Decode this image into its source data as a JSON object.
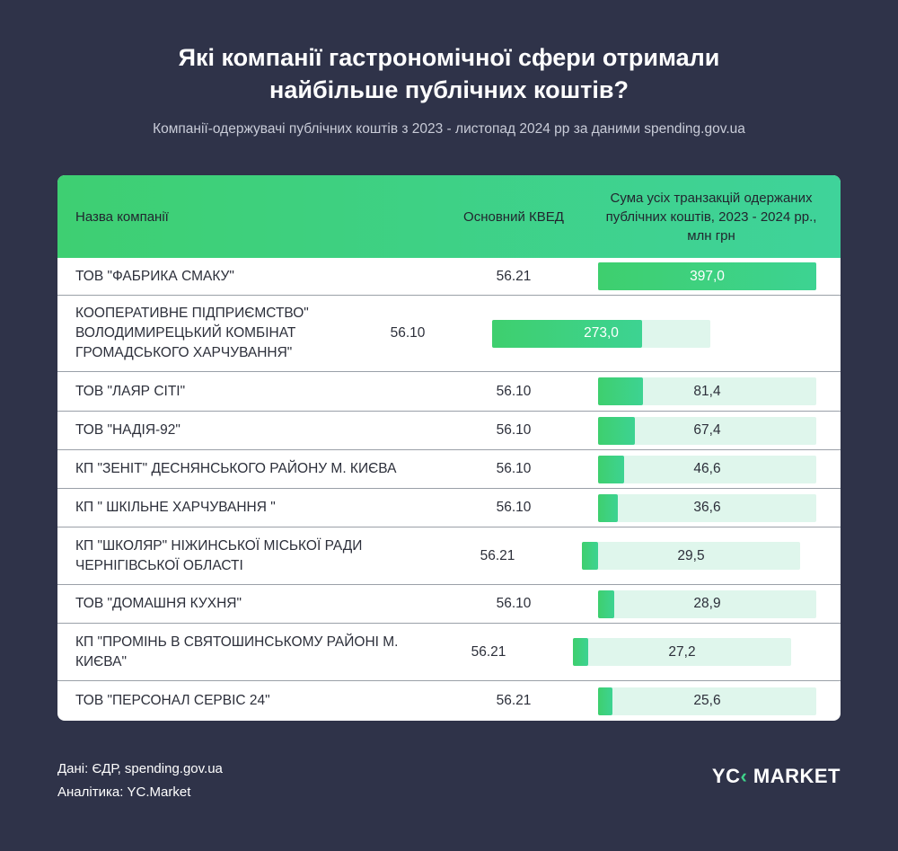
{
  "title_line1": "Які компанії гастрономічної сфери отримали",
  "title_line2": "найбільше публічних коштів?",
  "subtitle": "Компанії-одержувачі публічних коштів з 2023 - листопад 2024 рр за даними spending.gov.ua",
  "chart_data": {
    "type": "table",
    "columns": [
      "Назва компанії",
      "Основний КВЕД",
      "Сума усіх транзакцій одержаних публічних коштів, 2023 - 2024 рр., млн грн"
    ],
    "max": 397.0,
    "rows": [
      {
        "name": "ТОВ \"ФАБРИКА СМАКУ\"",
        "kved": "56.21",
        "value": 397.0,
        "label": "397,0"
      },
      {
        "name": "КООПЕРАТИВНЕ ПІДПРИЄМСТВО\" ВОЛОДИМИРЕЦЬКИЙ КОМБІНАТ ГРОМАДСЬКОГО ХАРЧУВАННЯ\"",
        "kved": "56.10",
        "value": 273.0,
        "label": "273,0"
      },
      {
        "name": "ТОВ \"ЛАЯР СІТІ\"",
        "kved": "56.10",
        "value": 81.4,
        "label": "81,4"
      },
      {
        "name": "ТОВ \"НАДІЯ-92\"",
        "kved": "56.10",
        "value": 67.4,
        "label": "67,4"
      },
      {
        "name": "КП \"ЗЕНІТ\" ДЕСНЯНСЬКОГО РАЙОНУ М. КИЄВА",
        "kved": "56.10",
        "value": 46.6,
        "label": "46,6"
      },
      {
        "name": "КП \" ШКІЛЬНЕ ХАРЧУВАННЯ \"",
        "kved": "56.10",
        "value": 36.6,
        "label": "36,6"
      },
      {
        "name": "КП \"ШКОЛЯР\" НІЖИНСЬКОЇ МІСЬКОЇ РАДИ ЧЕРНІГІВСЬКОЇ ОБЛАСТІ",
        "kved": "56.21",
        "value": 29.5,
        "label": "29,5"
      },
      {
        "name": "ТОВ \"ДОМАШНЯ КУХНЯ\"",
        "kved": "56.10",
        "value": 28.9,
        "label": "28,9"
      },
      {
        "name": "КП \"ПРОМІНЬ В СВЯТОШИНСЬКОМУ РАЙОНІ М. КИЄВА\"",
        "kved": "56.21",
        "value": 27.2,
        "label": "27,2"
      },
      {
        "name": "ТОВ \"ПЕРСОНАЛ СЕРВІС 24\"",
        "kved": "56.21",
        "value": 25.6,
        "label": "25,6"
      }
    ]
  },
  "colors": {
    "background": "#2f3349",
    "accent": "#3ecf72",
    "track": "#dff6ec"
  },
  "source_line1": "Дані: ЄДР, spending.gov.ua",
  "source_line2": "Аналітика: YC.Market",
  "logo": "YC MARKET"
}
